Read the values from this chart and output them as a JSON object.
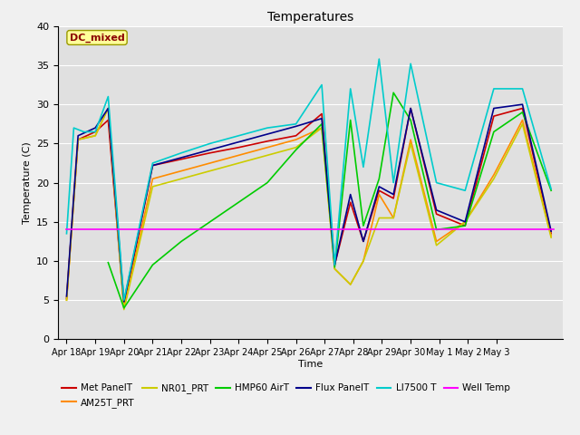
{
  "title": "Temperatures",
  "xlabel": "Time",
  "ylabel": "Temperature (C)",
  "ylim": [
    0,
    40
  ],
  "bg_color": "#e0e0e0",
  "annotation_text": "DC_mixed",
  "annotation_color": "#8b0000",
  "annotation_bg": "#ffff99",
  "series": {
    "Met_PanelT": {
      "color": "#cc0000",
      "lw": 1.2,
      "x": [
        18,
        18.4,
        19,
        19.45,
        20,
        21,
        22,
        23,
        24,
        25,
        26,
        26.9,
        27.35,
        27.9,
        28.35,
        28.9,
        29.4,
        30,
        30.9,
        31.9,
        32.9,
        33.9,
        34.9
      ],
      "y": [
        5.2,
        25.5,
        26.5,
        28.0,
        4.2,
        22.2,
        23.0,
        23.8,
        24.5,
        25.3,
        26.0,
        28.8,
        9.5,
        17.5,
        12.5,
        19.0,
        18.0,
        29.5,
        16.0,
        14.5,
        28.5,
        29.5,
        13.5
      ]
    },
    "AM25T_PRT": {
      "color": "#ff8c00",
      "lw": 1.2,
      "x": [
        18,
        18.4,
        19,
        19.45,
        20,
        21,
        22,
        23,
        24,
        25,
        26,
        26.9,
        27.35,
        27.9,
        28.35,
        28.9,
        29.4,
        30,
        30.9,
        31.9,
        32.9,
        33.9,
        34.9
      ],
      "y": [
        5.0,
        25.5,
        26.0,
        29.5,
        4.0,
        20.5,
        21.5,
        22.5,
        23.5,
        24.5,
        25.5,
        27.0,
        9.0,
        7.0,
        10.0,
        18.5,
        15.5,
        25.5,
        12.5,
        15.0,
        21.0,
        28.0,
        13.2
      ]
    },
    "NR01_PRT": {
      "color": "#cccc00",
      "lw": 1.2,
      "x": [
        18,
        18.4,
        19,
        19.45,
        20,
        21,
        22,
        23,
        24,
        25,
        26,
        26.9,
        27.35,
        27.9,
        28.35,
        28.9,
        29.4,
        30,
        30.9,
        31.9,
        32.9,
        33.9,
        34.9
      ],
      "y": [
        5.0,
        25.5,
        26.0,
        29.5,
        3.8,
        19.5,
        20.5,
        21.5,
        22.5,
        23.5,
        24.5,
        27.0,
        9.0,
        7.0,
        10.0,
        15.5,
        15.5,
        25.0,
        12.0,
        15.0,
        20.5,
        27.5,
        13.0
      ]
    },
    "HMP60_AirT": {
      "color": "#00cc00",
      "lw": 1.2,
      "x": [
        19.45,
        20,
        21,
        22,
        23,
        24,
        25,
        26,
        26.9,
        27.35,
        27.9,
        28.35,
        28.9,
        29.4,
        30,
        30.9,
        31.9,
        32.9,
        33.9,
        34.9
      ],
      "y": [
        9.8,
        4.0,
        9.5,
        12.5,
        15.0,
        17.5,
        20.0,
        24.2,
        27.5,
        9.2,
        28.0,
        14.5,
        20.5,
        31.5,
        28.0,
        14.0,
        14.5,
        26.5,
        29.0,
        19.0
      ]
    },
    "Flux_PanelT": {
      "color": "#00008b",
      "lw": 1.2,
      "x": [
        18,
        18.4,
        19,
        19.45,
        20,
        21,
        22,
        23,
        24,
        25,
        26,
        26.9,
        27.35,
        27.9,
        28.35,
        28.9,
        29.4,
        30,
        30.9,
        31.9,
        32.9,
        33.9,
        34.9
      ],
      "y": [
        5.5,
        26.0,
        27.0,
        29.5,
        4.8,
        22.2,
        23.2,
        24.2,
        25.2,
        26.2,
        27.2,
        28.2,
        9.5,
        18.5,
        12.5,
        19.5,
        18.5,
        29.5,
        16.5,
        15.0,
        29.5,
        30.0,
        13.8
      ]
    },
    "LI7500_T": {
      "color": "#00cccc",
      "lw": 1.2,
      "x": [
        18,
        18.25,
        18.6,
        19,
        19.45,
        20,
        21,
        22,
        23,
        24,
        25,
        26,
        26.9,
        27.35,
        27.9,
        28.35,
        28.9,
        29.4,
        30,
        30.9,
        31.9,
        32.9,
        33.9,
        34.9
      ],
      "y": [
        13.5,
        27.0,
        26.5,
        26.5,
        31.0,
        5.0,
        22.5,
        23.8,
        25.0,
        26.0,
        27.0,
        27.5,
        32.5,
        9.5,
        32.0,
        22.0,
        35.8,
        20.0,
        35.2,
        20.0,
        19.0,
        32.0,
        32.0,
        19.2
      ]
    },
    "Well_Temp": {
      "color": "#ff00ff",
      "lw": 1.2,
      "x": [
        18,
        35
      ],
      "y": [
        14.0,
        14.0
      ]
    }
  },
  "xtick_labels": [
    "Apr 18",
    "Apr 19",
    "Apr 20",
    "Apr 21",
    "Apr 22",
    "Apr 23",
    "Apr 24",
    "Apr 25",
    "Apr 26",
    "Apr 27",
    "Apr 28",
    "Apr 29",
    "Apr 30",
    "May 1",
    "May 2",
    "May 3"
  ],
  "xtick_positions": [
    18,
    19,
    20,
    21,
    22,
    23,
    24,
    25,
    26,
    27,
    28,
    29,
    30,
    31,
    32,
    33
  ],
  "xlim": [
    17.7,
    35.3
  ],
  "legend": [
    {
      "color": "#cc0000",
      "label": "Met PanelT"
    },
    {
      "color": "#ff8c00",
      "label": "AM25T_PRT"
    },
    {
      "color": "#cccc00",
      "label": "NR01_PRT"
    },
    {
      "color": "#00cc00",
      "label": "HMP60 AirT"
    },
    {
      "color": "#00008b",
      "label": "Flux PanelT"
    },
    {
      "color": "#00cccc",
      "label": "LI7500 T"
    },
    {
      "color": "#ff00ff",
      "label": "Well Temp"
    }
  ]
}
